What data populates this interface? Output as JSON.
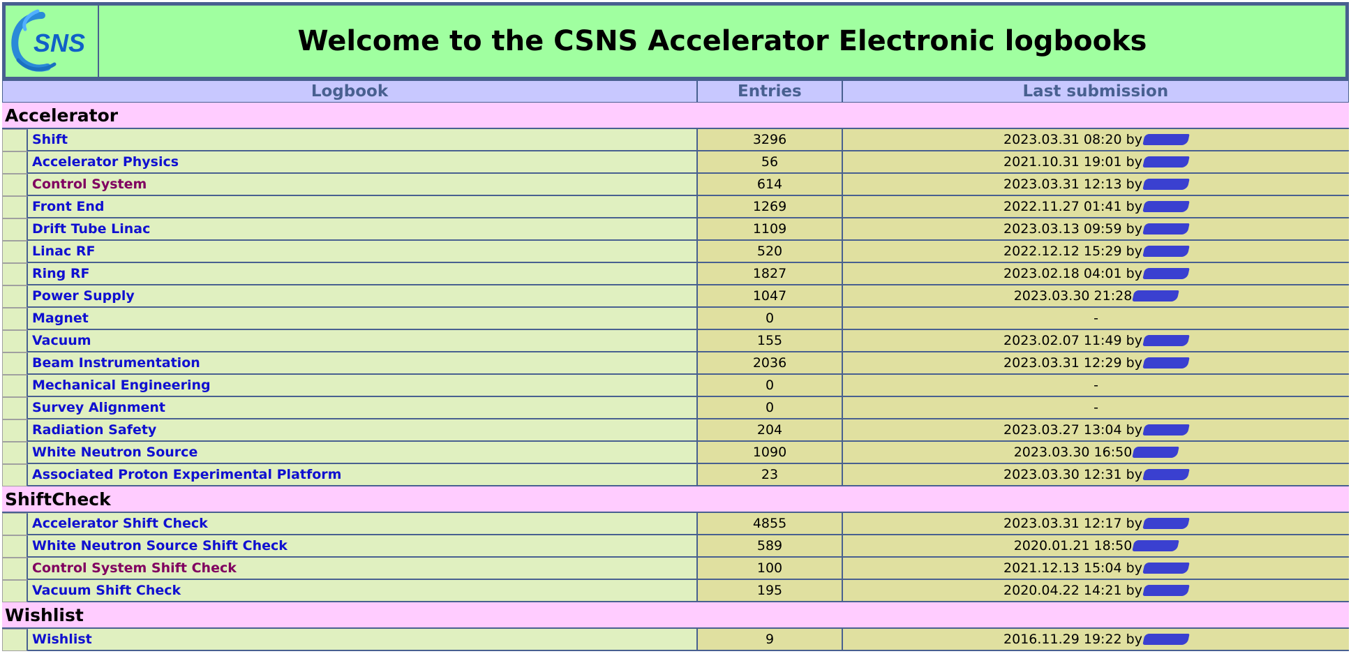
{
  "header": {
    "logo_text": "SNS",
    "title": "Welcome to the CSNS Accelerator Electronic logbooks"
  },
  "columns": [
    "Logbook",
    "Entries",
    "Last submission"
  ],
  "colors": {
    "header_bg": "#a0ffa0",
    "column_header_bg": "#c8c8ff",
    "group_bg": "#ffccff",
    "name_cell_bg": "#e0f0c0",
    "value_cell_bg": "#e0e0a0",
    "link": "#1010d0",
    "visited_link": "#800060",
    "border": "#486090",
    "redaction": "#3a40d0"
  },
  "groups": [
    {
      "name": "Accelerator",
      "logbooks": [
        {
          "name": "Shift",
          "entries": "3296",
          "last": "2023.03.31 08:20 by",
          "redacted": true
        },
        {
          "name": "Accelerator Physics",
          "entries": "56",
          "last": "2021.10.31 19:01 by",
          "redacted": true
        },
        {
          "name": "Control System",
          "entries": "614",
          "last": "2023.03.31 12:13 by",
          "redacted": true,
          "visited": true
        },
        {
          "name": "Front End",
          "entries": "1269",
          "last": "2022.11.27 01:41 by",
          "redacted": true
        },
        {
          "name": "Drift Tube Linac",
          "entries": "1109",
          "last": "2023.03.13 09:59 by",
          "redacted": true
        },
        {
          "name": "Linac RF",
          "entries": "520",
          "last": "2022.12.12 15:29 by",
          "redacted": true
        },
        {
          "name": "Ring RF",
          "entries": "1827",
          "last": "2023.02.18 04:01 by",
          "redacted": true
        },
        {
          "name": "Power Supply",
          "entries": "1047",
          "last": "2023.03.30 21:28",
          "redacted": true
        },
        {
          "name": "Magnet",
          "entries": "0",
          "last": "-",
          "redacted": false
        },
        {
          "name": "Vacuum",
          "entries": "155",
          "last": "2023.02.07 11:49 by",
          "redacted": true
        },
        {
          "name": "Beam Instrumentation",
          "entries": "2036",
          "last": "2023.03.31 12:29 by",
          "redacted": true
        },
        {
          "name": "Mechanical Engineering",
          "entries": "0",
          "last": "-",
          "redacted": false
        },
        {
          "name": "Survey Alignment",
          "entries": "0",
          "last": "-",
          "redacted": false
        },
        {
          "name": "Radiation Safety",
          "entries": "204",
          "last": "2023.03.27 13:04 by",
          "redacted": true
        },
        {
          "name": "White Neutron Source",
          "entries": "1090",
          "last": "2023.03.30 16:50",
          "redacted": true
        },
        {
          "name": "Associated Proton Experimental Platform",
          "entries": "23",
          "last": "2023.03.30 12:31 by",
          "redacted": true
        }
      ]
    },
    {
      "name": "ShiftCheck",
      "logbooks": [
        {
          "name": "Accelerator Shift Check",
          "entries": "4855",
          "last": "2023.03.31 12:17 by",
          "redacted": true
        },
        {
          "name": "White Neutron Source Shift Check",
          "entries": "589",
          "last": "2020.01.21 18:50",
          "redacted": true
        },
        {
          "name": "Control System Shift Check",
          "entries": "100",
          "last": "2021.12.13 15:04 by",
          "redacted": true,
          "visited": true
        },
        {
          "name": "Vacuum Shift Check",
          "entries": "195",
          "last": "2020.04.22 14:21 by",
          "redacted": true
        }
      ]
    },
    {
      "name": "Wishlist",
      "logbooks": [
        {
          "name": "Wishlist",
          "entries": "9",
          "last": "2016.11.29 19:22 by",
          "redacted": true
        }
      ]
    }
  ]
}
